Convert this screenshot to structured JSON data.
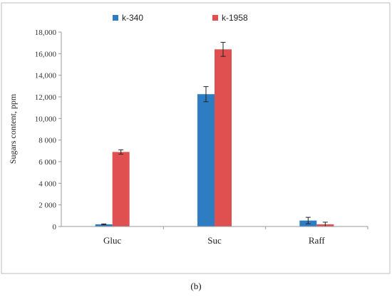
{
  "chart_data": {
    "type": "bar",
    "categories": [
      "Gluc",
      "Suc",
      "Raff"
    ],
    "series": [
      {
        "name": "k-340",
        "color": "#2e7dc3",
        "values": [
          200,
          12250,
          550
        ],
        "errors": [
          40,
          700,
          300
        ]
      },
      {
        "name": "k-1958",
        "color": "#e05050",
        "values": [
          6900,
          16400,
          200
        ],
        "errors": [
          200,
          650,
          200
        ]
      }
    ],
    "ylabel": "Sugars content, ppm",
    "xlabel": "",
    "ylim": [
      0,
      18000
    ],
    "yticks": [
      0,
      2000,
      4000,
      6000,
      8000,
      10000,
      12000,
      14000,
      16000,
      18000
    ],
    "ytick_labels": [
      "0",
      "2 000",
      "4 000",
      "6 000",
      "8 000",
      "10,000",
      "12,000",
      "14,000",
      "16,000",
      "18,000"
    ],
    "grid": false,
    "legend": "top"
  },
  "caption": "(b)"
}
